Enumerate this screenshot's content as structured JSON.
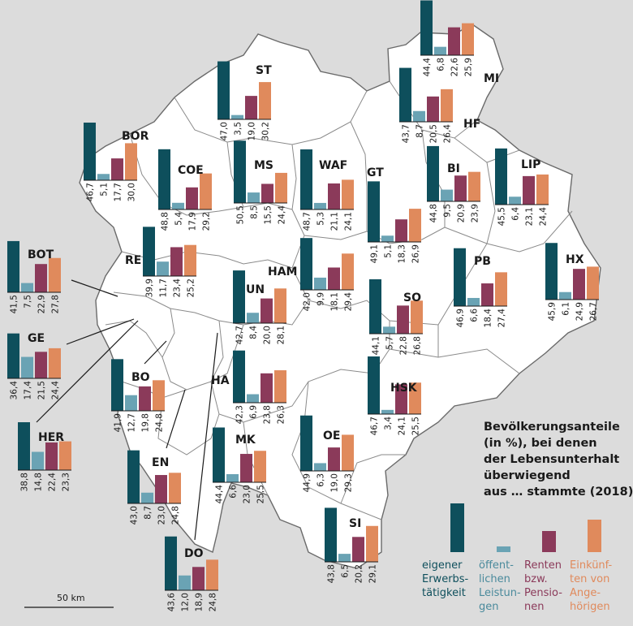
{
  "colors": {
    "background": "#dcdcdc",
    "land": "#ffffff",
    "border": "#6a6a6a",
    "erwerb": "#0e4f5c",
    "oeffentlich": "#6aa3b4",
    "renten": "#8b3a5a",
    "angehoerige": "#e08a5c"
  },
  "title_lines": [
    "Bevölkerungsanteile",
    "(in %), bei denen",
    "der Lebensunterhalt",
    "überwiegend",
    "aus … stammte (2018)"
  ],
  "legend": [
    {
      "key": "erwerb",
      "lines": [
        "eigener",
        "Erwerbs-",
        "tätigkeit"
      ],
      "color": "#0e4f5c",
      "text_color": "#0e4f5c"
    },
    {
      "key": "oeffentlich",
      "lines": [
        "öffent-",
        "lichen",
        "Leistun-",
        "gen"
      ],
      "color": "#6aa3b4",
      "text_color": "#4a8a9c"
    },
    {
      "key": "renten",
      "lines": [
        "Renten",
        "bzw.",
        "Pensio-",
        "nen"
      ],
      "color": "#8b3a5a",
      "text_color": "#8b3a5a"
    },
    {
      "key": "angehoerige",
      "lines": [
        "Einkünf-",
        "ten von",
        "Ange-",
        "hörigen"
      ],
      "color": "#e08a5c",
      "text_color": "#e08a5c"
    }
  ],
  "scale_label": "50 km",
  "chart_data": {
    "type": "bar",
    "series_names": [
      "eigener Erwerbstätigkeit",
      "öffentlichen Leistungen",
      "Renten bzw. Pensionen",
      "Einkünften von Angehörigen"
    ],
    "unit": "%",
    "year": 2018,
    "districts": [
      {
        "name": "MI",
        "values": [
          44.4,
          6.8,
          22.6,
          25.9
        ]
      },
      {
        "name": "ST",
        "values": [
          47.0,
          3.5,
          19.0,
          30.2
        ]
      },
      {
        "name": "HF",
        "values": [
          43.7,
          8.7,
          20.5,
          26.4
        ]
      },
      {
        "name": "BOR",
        "values": [
          46.7,
          5.1,
          17.7,
          30.0
        ]
      },
      {
        "name": "COE",
        "values": [
          48.8,
          5.4,
          17.9,
          29.2
        ]
      },
      {
        "name": "MS",
        "values": [
          50.5,
          8.5,
          15.5,
          24.4
        ]
      },
      {
        "name": "WAF",
        "values": [
          48.7,
          5.3,
          21.1,
          24.1
        ]
      },
      {
        "name": "GT",
        "values": [
          49.1,
          5.1,
          18.3,
          26.9
        ]
      },
      {
        "name": "BI",
        "values": [
          44.8,
          9.5,
          20.9,
          23.9
        ]
      },
      {
        "name": "LIP",
        "values": [
          45.5,
          6.4,
          23.1,
          24.4
        ]
      },
      {
        "name": "BOT",
        "values": [
          41.5,
          7.5,
          22.9,
          27.8
        ]
      },
      {
        "name": "RE",
        "values": [
          39.9,
          11.7,
          23.4,
          25.2
        ]
      },
      {
        "name": "HAM",
        "values": [
          42.0,
          9.9,
          18.1,
          29.4
        ]
      },
      {
        "name": "PB",
        "values": [
          46.9,
          6.6,
          18.4,
          27.4
        ]
      },
      {
        "name": "HX",
        "values": [
          45.9,
          6.1,
          24.9,
          26.7
        ]
      },
      {
        "name": "UN",
        "values": [
          42.7,
          8.4,
          20.0,
          28.1
        ]
      },
      {
        "name": "SO",
        "values": [
          44.1,
          5.7,
          22.8,
          26.8
        ]
      },
      {
        "name": "GE",
        "values": [
          36.4,
          17.4,
          21.5,
          24.4
        ]
      },
      {
        "name": "BO",
        "values": [
          41.9,
          12.7,
          19.8,
          24.8
        ]
      },
      {
        "name": "HA",
        "values": [
          42.3,
          6.9,
          23.8,
          26.3
        ]
      },
      {
        "name": "HSK",
        "values": [
          46.7,
          3.4,
          24.1,
          25.5
        ]
      },
      {
        "name": "HER",
        "values": [
          38.8,
          14.8,
          22.4,
          23.3
        ]
      },
      {
        "name": "MK",
        "values": [
          44.4,
          6.6,
          23.0,
          25.5
        ]
      },
      {
        "name": "OE",
        "values": [
          44.9,
          6.3,
          19.0,
          29.3
        ]
      },
      {
        "name": "EN",
        "values": [
          43.0,
          8.7,
          23.0,
          24.8
        ]
      },
      {
        "name": "SI",
        "values": [
          43.8,
          6.5,
          20.2,
          29.1
        ]
      },
      {
        "name": "DO",
        "values": [
          43.6,
          12.0,
          18.9,
          24.8
        ]
      }
    ]
  }
}
